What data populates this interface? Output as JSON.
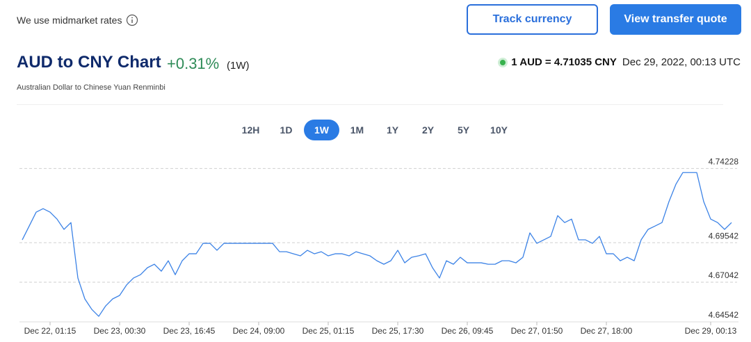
{
  "header": {
    "note": "We use midmarket rates",
    "buttons": [
      "Track currency",
      "View transfer quote"
    ]
  },
  "pair": {
    "title": "AUD to CNY Chart",
    "change": "+0.31%",
    "period": "(1W)",
    "subtitle": "Australian Dollar to Chinese Yuan Renminbi",
    "rate": "1 AUD = 4.71035 CNY",
    "timestamp": "Dec 29, 2022, 00:13 UTC"
  },
  "ranges": {
    "items": [
      "12H",
      "1D",
      "1W",
      "1M",
      "1Y",
      "2Y",
      "5Y",
      "10Y"
    ],
    "active_index": 2
  },
  "chart_data": {
    "type": "line",
    "color": "#3b82e6",
    "categories": [
      null,
      null,
      null,
      null,
      "Dec 22, 01:15",
      null,
      null,
      null,
      null,
      null,
      null,
      null,
      null,
      null,
      "Dec 23, 00:30",
      null,
      null,
      null,
      null,
      null,
      null,
      null,
      null,
      null,
      "Dec 23, 16:45",
      null,
      null,
      null,
      null,
      null,
      null,
      null,
      null,
      null,
      "Dec 24, 09:00",
      null,
      null,
      null,
      null,
      null,
      null,
      null,
      null,
      null,
      "Dec 25, 01:15",
      null,
      null,
      null,
      null,
      null,
      null,
      null,
      null,
      null,
      "Dec 25, 17:30",
      null,
      null,
      null,
      null,
      null,
      null,
      null,
      null,
      null,
      "Dec 26, 09:45",
      null,
      null,
      null,
      null,
      null,
      null,
      null,
      null,
      null,
      "Dec 27, 01:50",
      null,
      null,
      null,
      null,
      null,
      null,
      null,
      null,
      null,
      "Dec 27, 18:00",
      null,
      null,
      null,
      null,
      null,
      null,
      null,
      null,
      null,
      null,
      null,
      null,
      null,
      null,
      "Dec 29, 00:13",
      null,
      null,
      null
    ],
    "values": [
      4.6972,
      4.7059,
      4.7147,
      4.7169,
      4.7147,
      4.7103,
      4.7038,
      4.7081,
      4.6731,
      4.6599,
      4.6533,
      4.6489,
      4.6555,
      4.6599,
      4.6621,
      4.6687,
      4.6731,
      4.6752,
      4.6796,
      4.6818,
      4.6774,
      4.684,
      4.6752,
      4.684,
      4.6884,
      4.6884,
      4.695,
      4.695,
      4.6906,
      4.695,
      4.695,
      4.695,
      4.695,
      4.695,
      4.695,
      4.695,
      4.695,
      4.6897,
      4.6897,
      4.6884,
      4.6871,
      4.6906,
      4.6884,
      4.6897,
      4.6871,
      4.6884,
      4.6884,
      4.6871,
      4.6897,
      4.6884,
      4.6871,
      4.684,
      4.6818,
      4.684,
      4.6906,
      4.6827,
      4.6862,
      4.6871,
      4.6884,
      4.6796,
      4.6731,
      4.684,
      4.6818,
      4.6862,
      4.6827,
      4.6827,
      4.6827,
      4.6818,
      4.6818,
      4.684,
      4.684,
      4.6827,
      4.6862,
      4.7016,
      4.695,
      4.6972,
      4.6994,
      4.7125,
      4.7081,
      4.7103,
      4.6972,
      4.6972,
      4.695,
      4.6994,
      4.6884,
      4.6884,
      4.684,
      4.6862,
      4.684,
      4.6972,
      4.7038,
      4.7059,
      4.7081,
      4.7213,
      4.7323,
      4.7397,
      4.7397,
      4.7397,
      4.7213,
      4.7103,
      4.7081,
      4.7038,
      4.7081
    ],
    "ylim": [
      4.64542,
      4.7455
    ],
    "yticks": [
      4.64542,
      4.67042,
      4.69542,
      4.74228
    ],
    "grid": true
  }
}
